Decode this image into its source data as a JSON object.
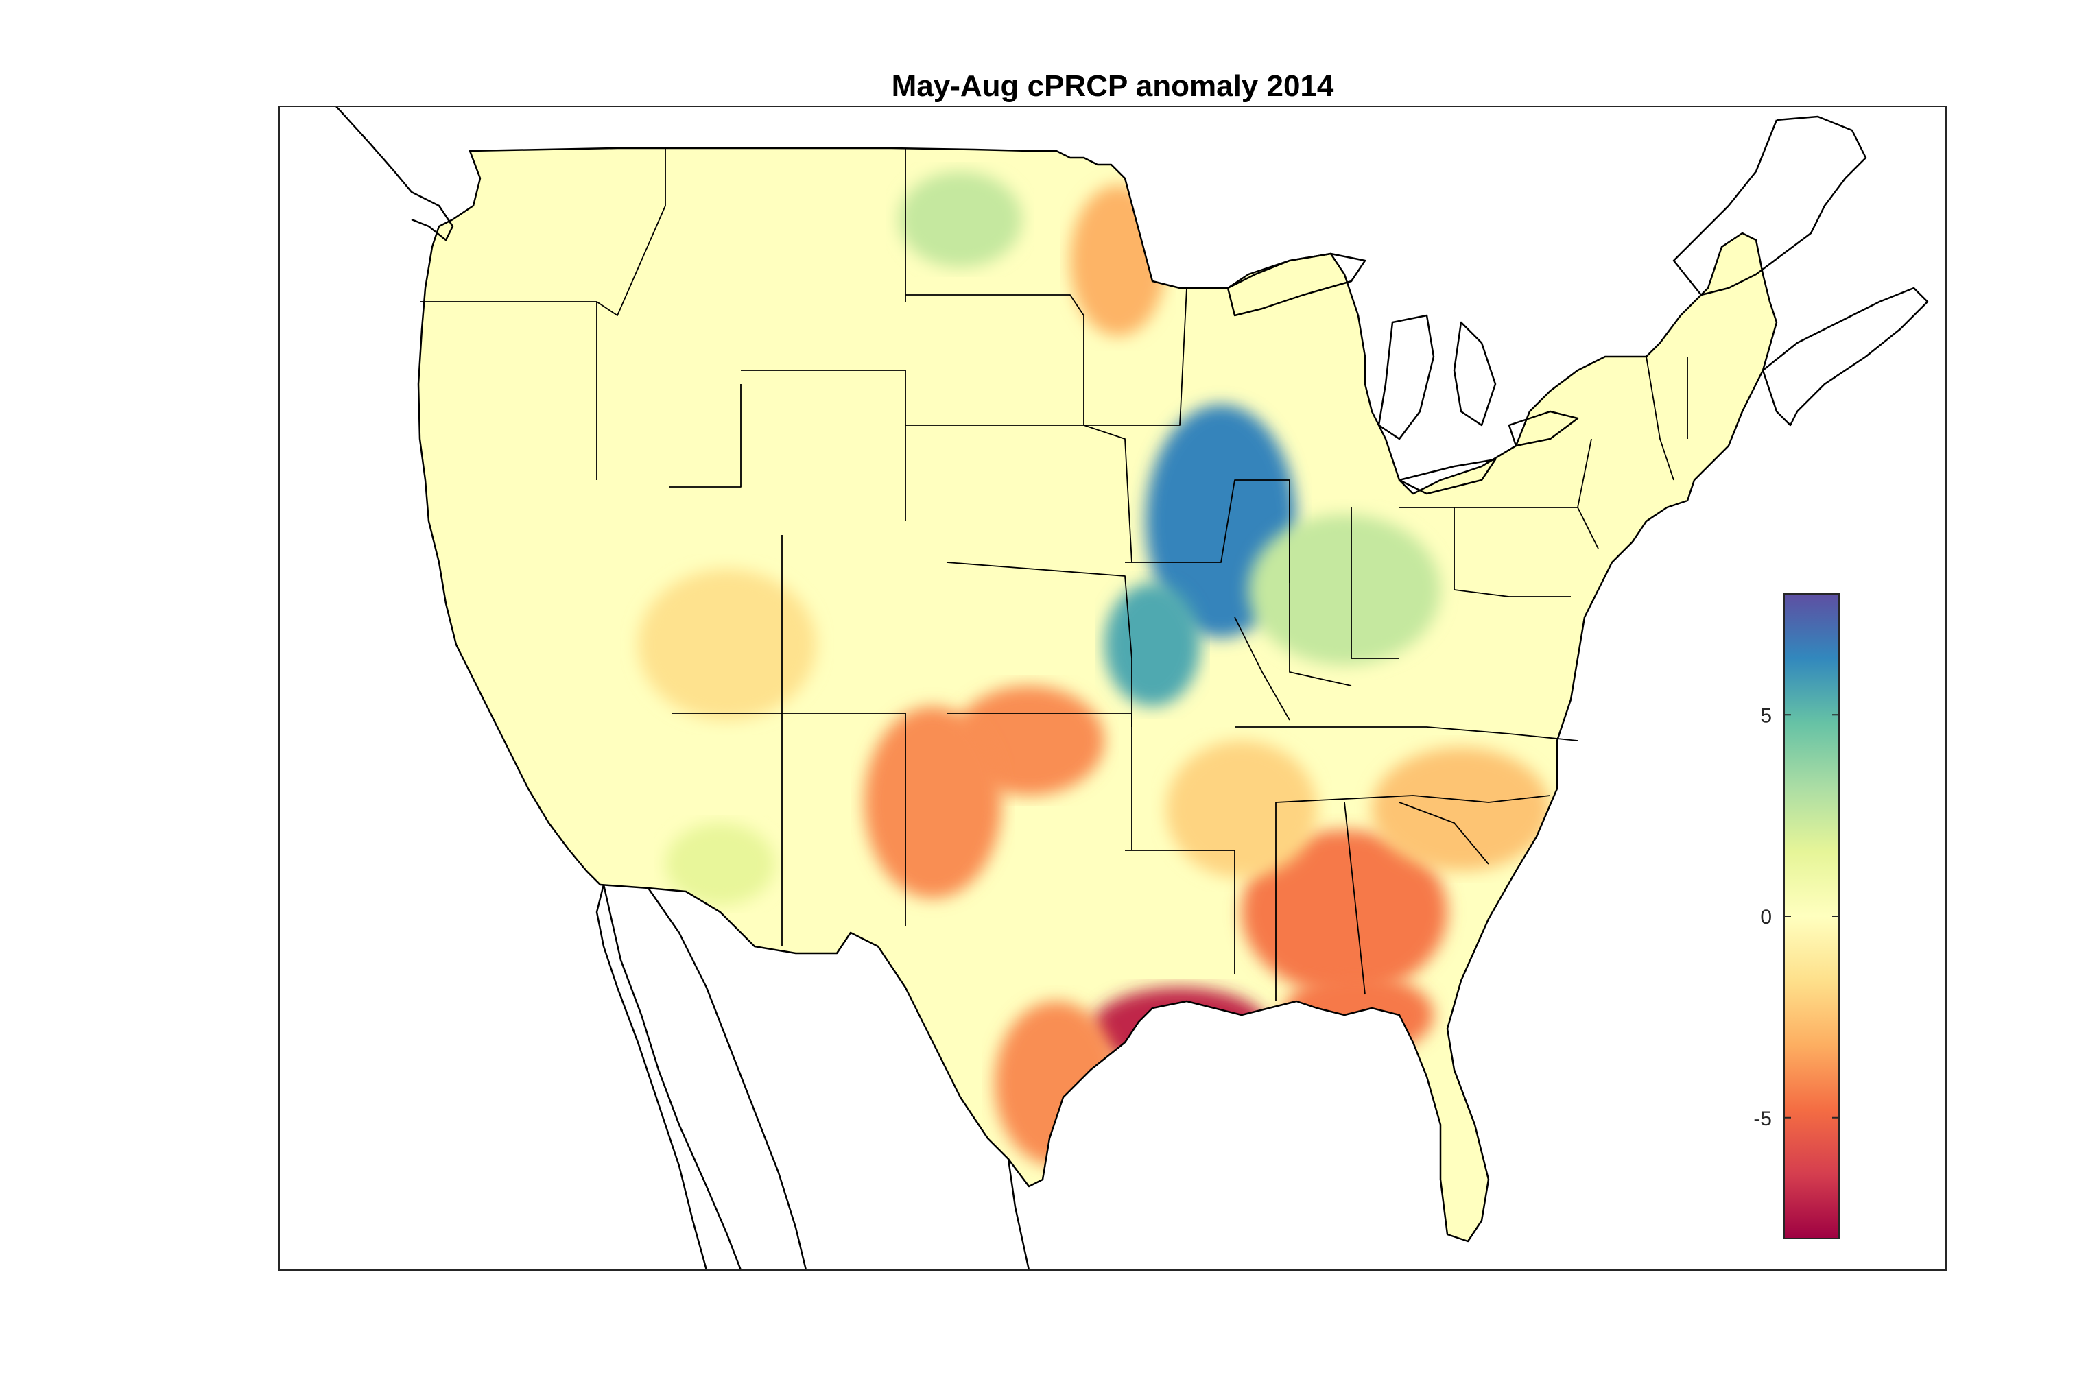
{
  "figure": {
    "title": "May-Aug cPRCP anomaly 2014"
  },
  "colorbar": {
    "range": [
      -8,
      8
    ],
    "ticks": [
      {
        "value": 5,
        "label": "5"
      },
      {
        "value": 0,
        "label": "0"
      },
      {
        "value": -5,
        "label": "-5"
      }
    ],
    "colormap": "spectral (red = negative, yellow = zero, blue/purple = positive)",
    "stops": [
      "#9e0142",
      "#d53e4f",
      "#f46d43",
      "#fdae61",
      "#fee08b",
      "#ffffbf",
      "#e6f598",
      "#abdda4",
      "#66c2a5",
      "#3288bd",
      "#5e4fa2"
    ]
  },
  "map_data": {
    "type": "gridded anomaly heatmap",
    "region": "Contiguous United States",
    "background_value": 0,
    "anomaly_centers": [
      {
        "region": "Upper Mississippi Valley (IA / IL / MO)",
        "value": 6.5
      },
      {
        "region": "Northern Missouri",
        "value": 5.5
      },
      {
        "region": "Northern Plains (ND)",
        "value": 2.5
      },
      {
        "region": "Ohio Valley (IN / OH / KY)",
        "value": 2.5
      },
      {
        "region": "Louisiana coast",
        "value": -7.0
      },
      {
        "region": "Alabama / Georgia",
        "value": -4.5
      },
      {
        "region": "Florida Panhandle",
        "value": -4.5
      },
      {
        "region": "Oklahoma",
        "value": -4.0
      },
      {
        "region": "North Texas",
        "value": -4.0
      },
      {
        "region": "South Texas coast",
        "value": -4.0
      },
      {
        "region": "Western Minnesota",
        "value": -3.0
      },
      {
        "region": "Carolinas",
        "value": -2.5
      },
      {
        "region": "Arkansas / Tennessee",
        "value": -2.0
      },
      {
        "region": "Four Corners",
        "value": -1.5
      },
      {
        "region": "Southern Arizona",
        "value": 1.5
      }
    ]
  }
}
